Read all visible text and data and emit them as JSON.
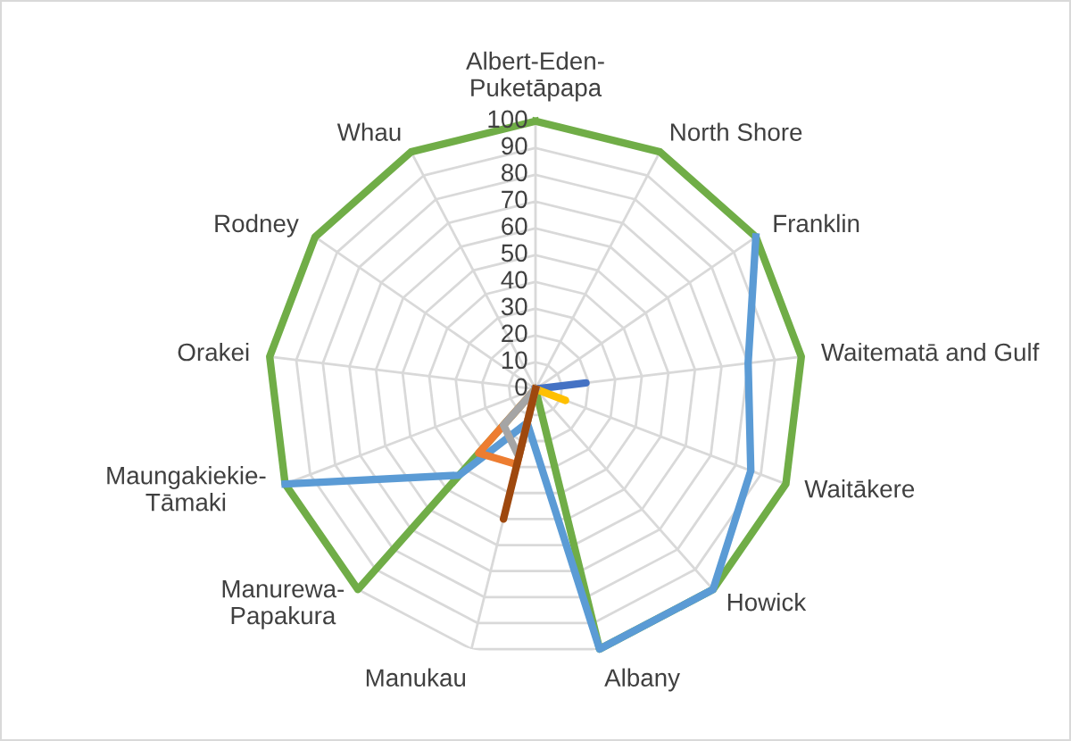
{
  "chart_data": {
    "type": "radar",
    "categories": [
      "Albert-Eden-Puketāpapa",
      "North Shore",
      "Franklin",
      "Waitematā and Gulf",
      "Waitākere",
      "Howick",
      "Albany",
      "Manukau",
      "Manurewa-Papakura",
      "Maungakiekie-Tāmaki",
      "Orakei",
      "Rodney",
      "Whau"
    ],
    "series": [
      {
        "color": "#70ad47",
        "values": [
          100,
          100,
          100,
          100,
          100,
          100,
          100,
          0,
          100,
          100,
          100,
          100,
          100
        ]
      },
      {
        "color": "#5b9bd5",
        "values": [
          null,
          null,
          100,
          80,
          86,
          100,
          100,
          13,
          43,
          100,
          null,
          null,
          null
        ]
      },
      {
        "color": "#4472c4",
        "values": [
          0,
          0,
          0,
          19,
          0,
          0,
          0,
          0,
          0,
          0,
          0,
          0,
          0
        ]
      },
      {
        "color": "#ffc000",
        "values": [
          0,
          0,
          0,
          0,
          12,
          0,
          0,
          0,
          0,
          0,
          0,
          0,
          0
        ]
      },
      {
        "color": "#ed7d31",
        "values": [
          0,
          0,
          0,
          0,
          0,
          0,
          0,
          29,
          32,
          0,
          0,
          0,
          0
        ]
      },
      {
        "color": "#a5a5a5",
        "values": [
          0,
          0,
          0,
          0,
          0,
          0,
          0,
          26,
          18,
          0,
          0,
          0,
          0
        ]
      },
      {
        "color": "#9e480e",
        "values": [
          0,
          0,
          0,
          0,
          0,
          0,
          0,
          50,
          0,
          0,
          0,
          0,
          0
        ]
      }
    ],
    "ylim": [
      0,
      100
    ],
    "yticks": [
      0,
      10,
      20,
      30,
      40,
      50,
      60,
      70,
      80,
      90,
      100
    ],
    "grid": true,
    "legend": false
  }
}
